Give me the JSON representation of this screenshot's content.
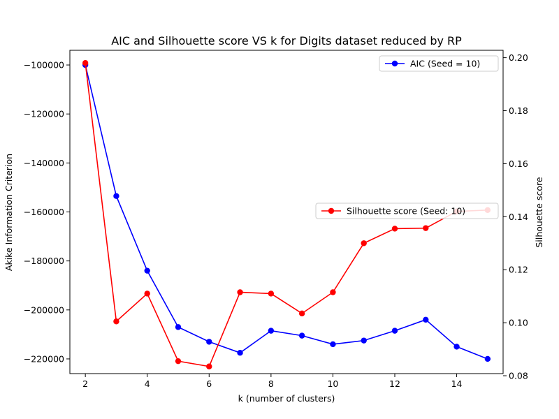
{
  "chart_data": {
    "type": "line",
    "title": "AIC and Silhouette score VS k for Digits dataset reduced by RP",
    "xlabel": "k (number of clusters)",
    "ylabel_left": "Akike Information Criterion",
    "ylabel_right": "Silhouette score",
    "x": [
      2,
      3,
      4,
      5,
      6,
      7,
      8,
      9,
      10,
      11,
      12,
      13,
      14,
      15
    ],
    "xlim": [
      1.5,
      15.5
    ],
    "ylim_left": [
      -226000,
      -94000
    ],
    "ylim_right": [
      0.0808,
      0.2028
    ],
    "xticks": [
      2,
      4,
      6,
      8,
      10,
      12,
      14
    ],
    "yticks_left": [
      -100000,
      -120000,
      -140000,
      -160000,
      -180000,
      -200000,
      -220000
    ],
    "yticks_left_labels": [
      "−100000",
      "−120000",
      "−140000",
      "−160000",
      "−180000",
      "−200000",
      "−220000"
    ],
    "yticks_right": [
      0.08,
      0.1,
      0.12,
      0.14,
      0.16,
      0.18,
      0.2
    ],
    "yticks_right_labels": [
      "0.08",
      "0.10",
      "0.12",
      "0.14",
      "0.16",
      "0.18",
      "0.20"
    ],
    "grid": false,
    "series": [
      {
        "name": "AIC (Seed = 10)",
        "axis": "left",
        "color": "#0000ff",
        "legend_position": "upper-right",
        "values": [
          -100000,
          -153500,
          -184000,
          -207000,
          -213000,
          -217500,
          -208500,
          -210500,
          -214000,
          -212500,
          -208500,
          -204000,
          -215000,
          -220000
        ]
      },
      {
        "name": "Silhouette score (Seed: 10)",
        "axis": "right",
        "color": "#ff0000",
        "legend_position": "center-right",
        "values": [
          0.198,
          0.1005,
          0.111,
          0.0855,
          0.0835,
          0.1115,
          0.111,
          0.1035,
          0.1115,
          0.13,
          0.1355,
          0.1357,
          0.142,
          0.1425
        ]
      }
    ]
  }
}
